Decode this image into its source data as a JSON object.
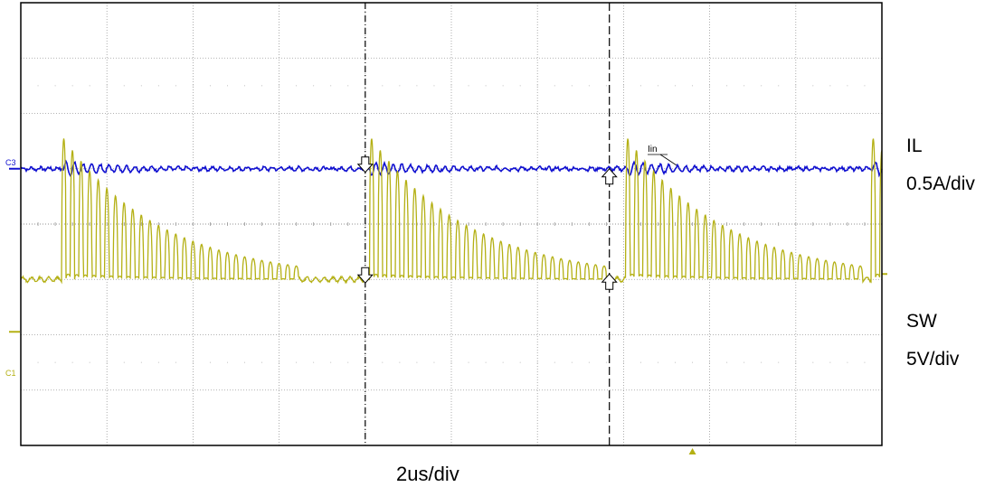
{
  "chart_data": {
    "type": "line",
    "title": "",
    "xlabel": "2us/div",
    "grid": true,
    "divisions": {
      "x": 10,
      "y": 8
    },
    "x_unit": "us",
    "x_range": [
      0,
      20
    ],
    "cursors_x_us": [
      8.0,
      13.67
    ],
    "channels": [
      {
        "id": "C3",
        "name": "IL",
        "scale_label": "0.5A/div",
        "color": "#1010d0",
        "marker_label": "Iin",
        "baseline_div": 1.0,
        "ripple_amplitude_div": 0.1,
        "ringing_start_us": [
          1.0,
          8.1,
          14.1,
          19.8
        ]
      },
      {
        "id": "C1",
        "name": "SW",
        "scale_label": "5V/div",
        "color": "#b4b014",
        "baseline_div": -1.0,
        "ringing_peak_div": [
          1.6,
          -0.9
        ],
        "ringing_period_us": 0.2,
        "ringing_start_us": [
          0.95,
          8.1,
          14.05,
          19.75
        ]
      }
    ],
    "trigger_marker_us": 15.6
  }
}
